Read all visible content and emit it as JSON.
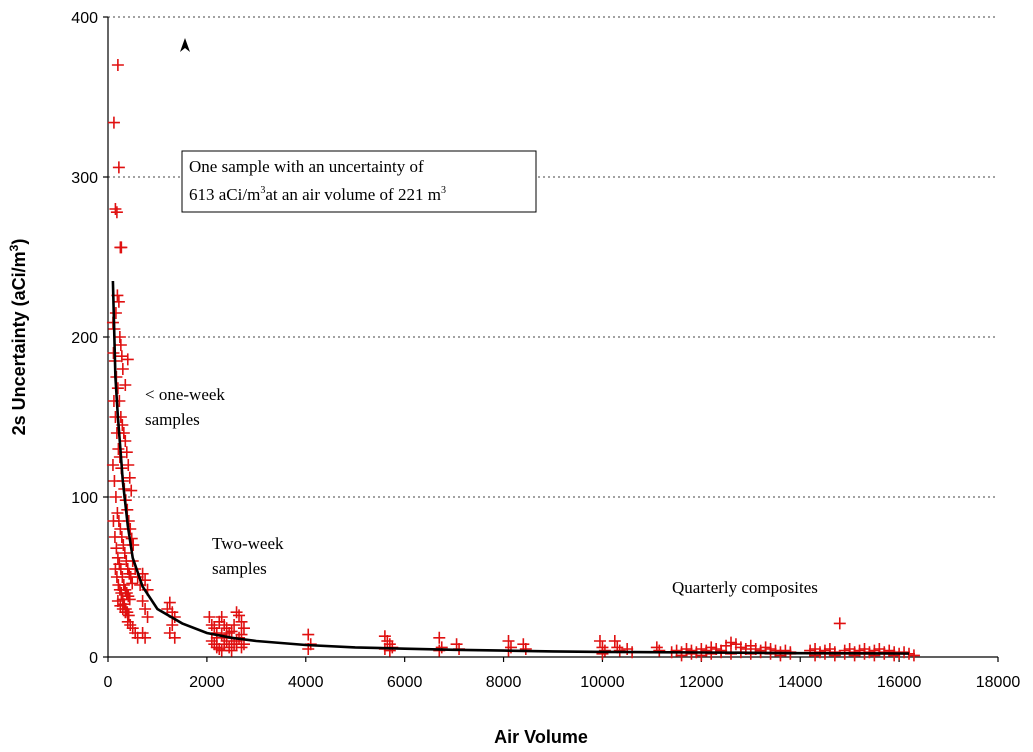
{
  "chart_data": {
    "type": "scatter",
    "title": "",
    "xlabel": "Air Volume",
    "ylabel": "2s Uncertainty  (aCi/m",
    "ylabel_sup": "3",
    "ylabel_close": ")",
    "xlim": [
      0,
      18000
    ],
    "ylim": [
      0,
      400
    ],
    "xticks": [
      0,
      2000,
      4000,
      6000,
      8000,
      10000,
      12000,
      14000,
      16000,
      18000
    ],
    "yticks": [
      0,
      100,
      200,
      300,
      400
    ],
    "grid": "horizontal dotted",
    "colors": {
      "markers": "#e01010",
      "fit_line": "#000000"
    },
    "marker": "plus",
    "annotations": {
      "box_line1": "One sample with an uncertainty of",
      "box_line2_a": "613 aCi/m",
      "box_line2_sup1": "3",
      "box_line2_b": "at an air volume of 221 m",
      "box_line2_sup2": "3",
      "arrow": "off-scale point indicator",
      "one_week_1": "< one-week",
      "one_week_2": "samples",
      "two_week_1": "Two-week",
      "two_week_2": "samples",
      "quarterly": "Quarterly composites"
    },
    "fit_curve": {
      "name": "",
      "points": [
        [
          100,
          235
        ],
        [
          150,
          175
        ],
        [
          200,
          150
        ],
        [
          250,
          130
        ],
        [
          300,
          110
        ],
        [
          400,
          82
        ],
        [
          500,
          62
        ],
        [
          700,
          44
        ],
        [
          1000,
          30
        ],
        [
          1500,
          21
        ],
        [
          2000,
          15
        ],
        [
          2500,
          12
        ],
        [
          3000,
          10
        ],
        [
          4000,
          7.5
        ],
        [
          5000,
          6
        ],
        [
          6000,
          5.2
        ],
        [
          7000,
          4.5
        ],
        [
          8000,
          4
        ],
        [
          9000,
          3.5
        ],
        [
          10000,
          3.2
        ],
        [
          11000,
          3
        ],
        [
          12000,
          2.8
        ],
        [
          13000,
          2.6
        ],
        [
          14000,
          2.4
        ],
        [
          15000,
          2.3
        ],
        [
          16000,
          2.2
        ],
        [
          16200,
          2.1
        ]
      ]
    },
    "series": [
      {
        "name": "",
        "points": [
          [
            120,
            334
          ],
          [
            200,
            370
          ],
          [
            220,
            306
          ],
          [
            150,
            280
          ],
          [
            180,
            278
          ],
          [
            250,
            256
          ],
          [
            270,
            256
          ],
          [
            100,
            209
          ],
          [
            130,
            205
          ],
          [
            160,
            215
          ],
          [
            190,
            226
          ],
          [
            220,
            222
          ],
          [
            240,
            200
          ],
          [
            260,
            195
          ],
          [
            280,
            188
          ],
          [
            300,
            180
          ],
          [
            400,
            186
          ],
          [
            350,
            170
          ],
          [
            110,
            190
          ],
          [
            140,
            185
          ],
          [
            170,
            175
          ],
          [
            200,
            168
          ],
          [
            230,
            160
          ],
          [
            260,
            150
          ],
          [
            290,
            145
          ],
          [
            320,
            140
          ],
          [
            350,
            135
          ],
          [
            380,
            128
          ],
          [
            410,
            120
          ],
          [
            440,
            112
          ],
          [
            470,
            104
          ],
          [
            120,
            160
          ],
          [
            150,
            150
          ],
          [
            180,
            140
          ],
          [
            210,
            130
          ],
          [
            240,
            125
          ],
          [
            270,
            118
          ],
          [
            300,
            110
          ],
          [
            330,
            105
          ],
          [
            360,
            98
          ],
          [
            390,
            92
          ],
          [
            420,
            85
          ],
          [
            450,
            80
          ],
          [
            480,
            74
          ],
          [
            510,
            70
          ],
          [
            100,
            120
          ],
          [
            130,
            110
          ],
          [
            160,
            100
          ],
          [
            190,
            90
          ],
          [
            220,
            85
          ],
          [
            250,
            80
          ],
          [
            280,
            75
          ],
          [
            310,
            70
          ],
          [
            340,
            65
          ],
          [
            370,
            60
          ],
          [
            400,
            55
          ],
          [
            430,
            52
          ],
          [
            460,
            50
          ],
          [
            490,
            46
          ],
          [
            110,
            85
          ],
          [
            140,
            75
          ],
          [
            170,
            68
          ],
          [
            200,
            62
          ],
          [
            230,
            58
          ],
          [
            260,
            55
          ],
          [
            290,
            50
          ],
          [
            320,
            45
          ],
          [
            350,
            42
          ],
          [
            380,
            40
          ],
          [
            410,
            38
          ],
          [
            440,
            36
          ],
          [
            150,
            55
          ],
          [
            180,
            50
          ],
          [
            210,
            45
          ],
          [
            240,
            42
          ],
          [
            270,
            40
          ],
          [
            300,
            36
          ],
          [
            330,
            33
          ],
          [
            360,
            30
          ],
          [
            390,
            28
          ],
          [
            420,
            26
          ],
          [
            200,
            35
          ],
          [
            250,
            32
          ],
          [
            300,
            30
          ],
          [
            350,
            28
          ],
          [
            400,
            22
          ],
          [
            450,
            20
          ],
          [
            500,
            18
          ],
          [
            550,
            15
          ],
          [
            600,
            12
          ],
          [
            500,
            60
          ],
          [
            550,
            55
          ],
          [
            600,
            50
          ],
          [
            650,
            45
          ],
          [
            700,
            52
          ],
          [
            750,
            48
          ],
          [
            800,
            42
          ],
          [
            700,
            35
          ],
          [
            750,
            30
          ],
          [
            800,
            25
          ],
          [
            700,
            15
          ],
          [
            750,
            12
          ],
          [
            1200,
            30
          ],
          [
            1250,
            34
          ],
          [
            1300,
            28
          ],
          [
            1350,
            25
          ],
          [
            1300,
            20
          ],
          [
            1250,
            15
          ],
          [
            1350,
            12
          ],
          [
            2050,
            25
          ],
          [
            2100,
            20
          ],
          [
            2150,
            18
          ],
          [
            2200,
            15
          ],
          [
            2250,
            22
          ],
          [
            2300,
            25
          ],
          [
            2350,
            20
          ],
          [
            2400,
            18
          ],
          [
            2450,
            15
          ],
          [
            2500,
            12
          ],
          [
            2550,
            20
          ],
          [
            2600,
            28
          ],
          [
            2650,
            26
          ],
          [
            2700,
            22
          ],
          [
            2750,
            18
          ],
          [
            2100,
            10
          ],
          [
            2150,
            8
          ],
          [
            2200,
            6
          ],
          [
            2250,
            5
          ],
          [
            2300,
            4
          ],
          [
            2350,
            8
          ],
          [
            2400,
            10
          ],
          [
            2450,
            6
          ],
          [
            2500,
            4
          ],
          [
            2550,
            8
          ],
          [
            2600,
            10
          ],
          [
            2650,
            12
          ],
          [
            2700,
            14
          ],
          [
            2750,
            8
          ],
          [
            2200,
            12
          ],
          [
            2300,
            14
          ],
          [
            2400,
            12
          ],
          [
            2500,
            16
          ],
          [
            2600,
            8
          ],
          [
            2700,
            6
          ],
          [
            4050,
            14
          ],
          [
            4100,
            8
          ],
          [
            4050,
            5
          ],
          [
            5600,
            13
          ],
          [
            5650,
            10
          ],
          [
            5700,
            8
          ],
          [
            5750,
            6
          ],
          [
            5600,
            5
          ],
          [
            5700,
            4
          ],
          [
            6700,
            12
          ],
          [
            6750,
            6
          ],
          [
            6700,
            4
          ],
          [
            7050,
            8
          ],
          [
            7100,
            5
          ],
          [
            8100,
            10
          ],
          [
            8150,
            6
          ],
          [
            8100,
            4
          ],
          [
            8400,
            8
          ],
          [
            8450,
            5
          ],
          [
            9950,
            10
          ],
          [
            10000,
            6
          ],
          [
            10050,
            4
          ],
          [
            10000,
            2
          ],
          [
            10250,
            10
          ],
          [
            10300,
            6
          ],
          [
            10350,
            4
          ],
          [
            10500,
            5
          ],
          [
            10600,
            3
          ],
          [
            11100,
            6
          ],
          [
            11150,
            4
          ],
          [
            11400,
            3
          ],
          [
            11500,
            4
          ],
          [
            11600,
            3
          ],
          [
            11700,
            5
          ],
          [
            11800,
            4
          ],
          [
            11900,
            3
          ],
          [
            12000,
            5
          ],
          [
            12100,
            4
          ],
          [
            12200,
            6
          ],
          [
            12300,
            5
          ],
          [
            12400,
            4
          ],
          [
            12500,
            7
          ],
          [
            12600,
            9
          ],
          [
            12700,
            8
          ],
          [
            12800,
            6
          ],
          [
            12900,
            5
          ],
          [
            13000,
            7
          ],
          [
            13100,
            5
          ],
          [
            13200,
            4
          ],
          [
            13300,
            6
          ],
          [
            13400,
            5
          ],
          [
            13500,
            4
          ],
          [
            13600,
            3
          ],
          [
            13700,
            4
          ],
          [
            13800,
            3
          ],
          [
            11600,
            1
          ],
          [
            11800,
            2
          ],
          [
            12000,
            1
          ],
          [
            12200,
            2
          ],
          [
            12400,
            3
          ],
          [
            12600,
            2
          ],
          [
            12800,
            3
          ],
          [
            13000,
            2
          ],
          [
            13200,
            3
          ],
          [
            13400,
            2
          ],
          [
            13600,
            1
          ],
          [
            13800,
            2
          ],
          [
            14200,
            4
          ],
          [
            14300,
            5
          ],
          [
            14400,
            3
          ],
          [
            14500,
            4
          ],
          [
            14600,
            5
          ],
          [
            14700,
            3
          ],
          [
            14800,
            21
          ],
          [
            14900,
            4
          ],
          [
            15000,
            5
          ],
          [
            15100,
            3
          ],
          [
            15200,
            4
          ],
          [
            15300,
            5
          ],
          [
            15400,
            3
          ],
          [
            15500,
            4
          ],
          [
            15600,
            5
          ],
          [
            15700,
            3
          ],
          [
            15800,
            4
          ],
          [
            15900,
            3
          ],
          [
            16000,
            2
          ],
          [
            16100,
            3
          ],
          [
            16200,
            2
          ],
          [
            16300,
            1
          ],
          [
            14300,
            1
          ],
          [
            14500,
            2
          ],
          [
            14700,
            1
          ],
          [
            14900,
            2
          ],
          [
            15100,
            1
          ],
          [
            15300,
            2
          ],
          [
            15500,
            1
          ],
          [
            15700,
            2
          ],
          [
            15900,
            1
          ]
        ]
      }
    ]
  }
}
